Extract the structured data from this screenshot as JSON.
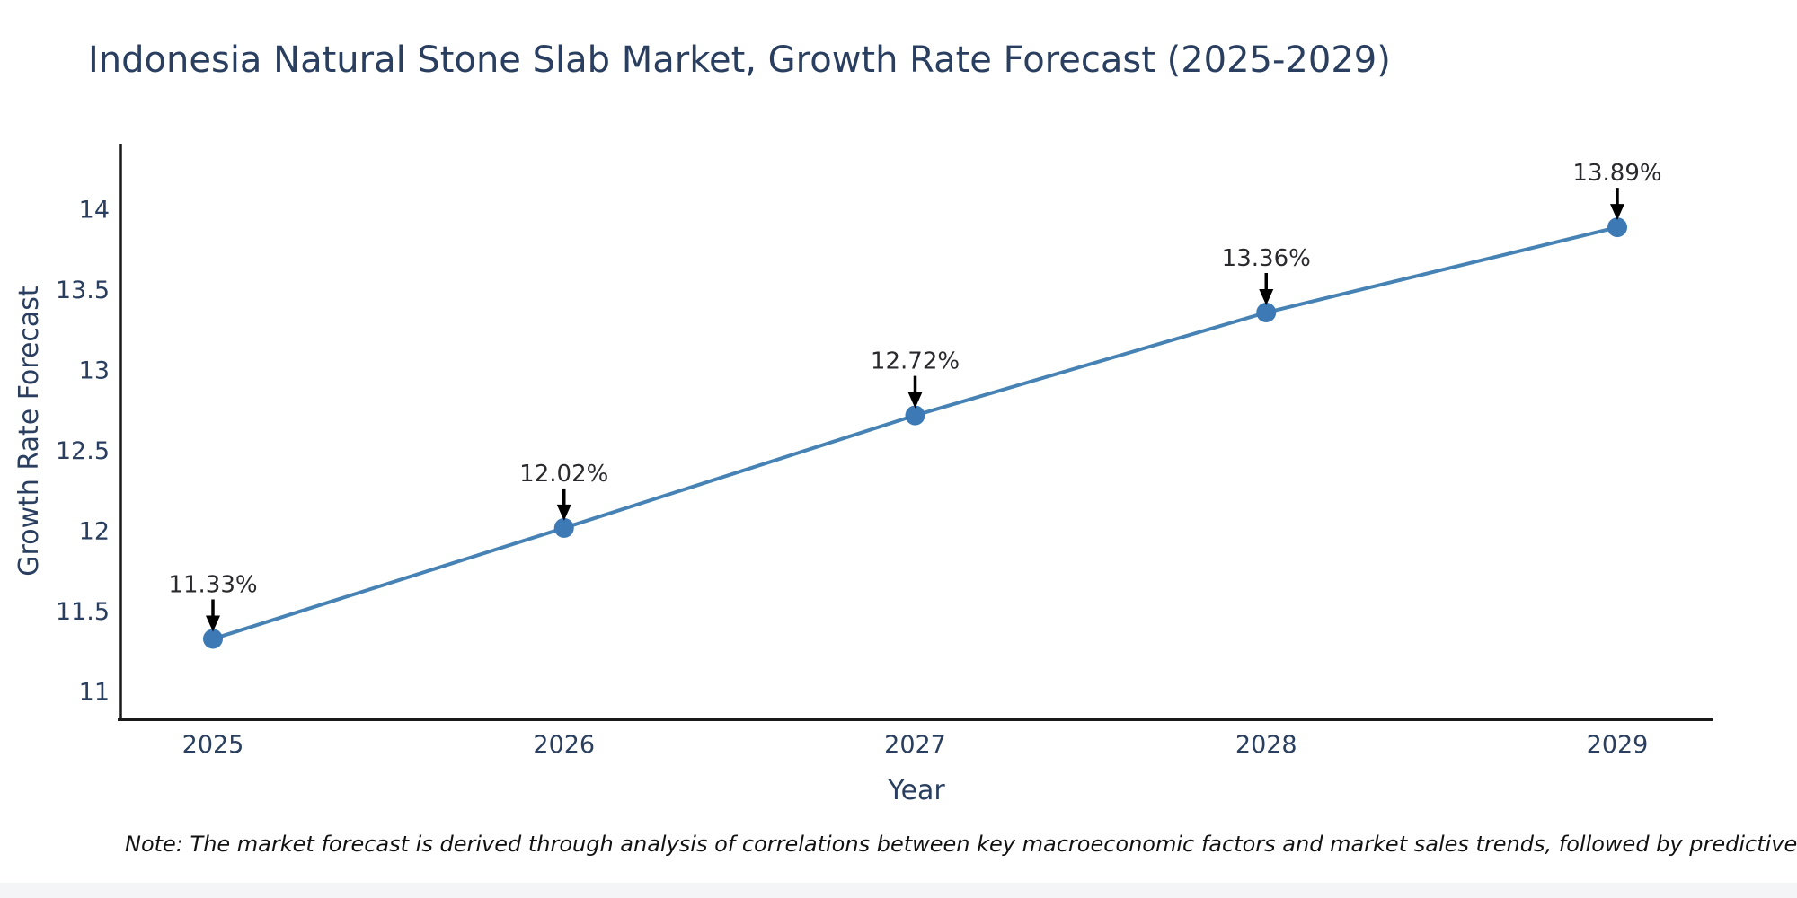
{
  "page": {
    "note": "Note: The market forecast is derived through analysis of correlations between key macroeconomic factors and market sales trends, followed by predictive modeling to project future sal"
  },
  "chart_data": {
    "type": "line",
    "title": "Indonesia Natural Stone Slab Market, Growth Rate Forecast (2025-2029)",
    "xlabel": "Year",
    "ylabel": "Growth Rate Forecast",
    "categories": [
      "2025",
      "2026",
      "2027",
      "2028",
      "2029"
    ],
    "series": [
      {
        "name": "Growth Rate Forecast",
        "values": [
          11.33,
          12.02,
          12.72,
          13.36,
          13.89
        ]
      }
    ],
    "point_labels": [
      "11.33%",
      "12.02%",
      "12.72%",
      "13.36%",
      "13.89%"
    ],
    "yticks": [
      11,
      11.5,
      12,
      12.5,
      13,
      13.5,
      14
    ],
    "ylim": [
      10.83,
      14.41
    ],
    "grid": false,
    "legend_position": "none",
    "line_color": "#4682b4",
    "marker_color": "#3d7ab5",
    "axis_color": "#1a1a1a",
    "text_color": "#2a3f5f",
    "annotation_color": "#2a2a2e",
    "arrow_color": "#000000"
  }
}
